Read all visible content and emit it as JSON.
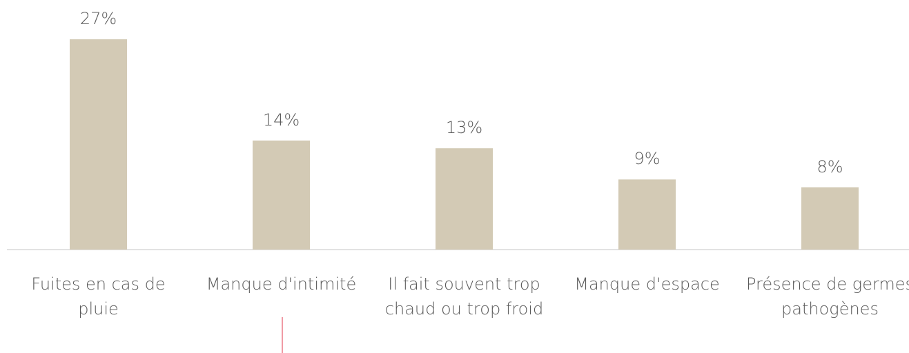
{
  "chart_data": {
    "type": "bar",
    "categories": [
      "Fuites en cas de pluie",
      "Manque d'intimité",
      "Il fait souvent trop chaud ou trop froid",
      "Manque d'espace",
      "Présence de germes pathogènes"
    ],
    "values": [
      27,
      14,
      13,
      9,
      8
    ],
    "value_labels": [
      "27%",
      "14%",
      "13%",
      "9%",
      "8%"
    ],
    "color": "#d3cab5"
  }
}
